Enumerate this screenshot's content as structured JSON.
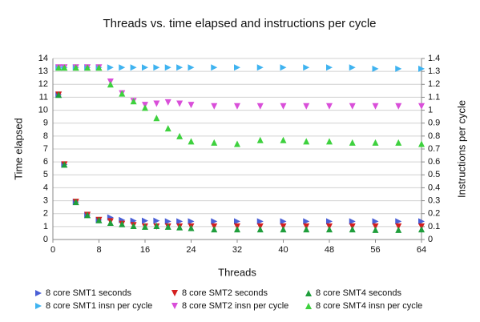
{
  "chart_data": {
    "type": "scatter",
    "title": "Threads vs. time elapsed and instructions per cycle",
    "x_label": "Threads",
    "y_label": "Time elapsed",
    "y2_label": "Instructions per cycle",
    "x": [
      1,
      2,
      4,
      6,
      8,
      10,
      12,
      14,
      16,
      18,
      20,
      22,
      24,
      28,
      32,
      36,
      40,
      44,
      48,
      52,
      56,
      60,
      64
    ],
    "xlim": [
      0,
      64
    ],
    "xticks": [
      0,
      8,
      16,
      24,
      32,
      40,
      48,
      56,
      64
    ],
    "ylim": [
      0,
      14
    ],
    "yticks": [
      0,
      1,
      2,
      3,
      4,
      5,
      6,
      7,
      8,
      9,
      10,
      11,
      12,
      13,
      14
    ],
    "y2lim": [
      0,
      1.4
    ],
    "y2ticks": [
      0,
      0.1,
      0.2,
      0.3,
      0.4,
      0.5,
      0.6,
      0.7,
      0.8,
      0.9,
      1,
      1.1,
      1.2,
      1.3,
      1.4
    ],
    "grid": true,
    "legend": "bottom",
    "series": [
      {
        "name": "8 core SMT1 seconds",
        "color": "#4a5fd6",
        "marker": "right",
        "values": [
          11.2,
          5.8,
          2.9,
          1.9,
          1.5,
          1.7,
          1.5,
          1.45,
          1.45,
          1.45,
          1.4,
          1.4,
          1.4,
          1.4,
          1.4,
          1.4,
          1.4,
          1.4,
          1.4,
          1.4,
          1.4,
          1.4,
          1.4
        ]
      },
      {
        "name": "8 core SMT2 seconds",
        "color": "#d42020",
        "marker": "down",
        "values": [
          11.2,
          5.8,
          2.9,
          1.9,
          1.5,
          1.4,
          1.2,
          1.1,
          1.0,
          1.0,
          1.0,
          1.0,
          1.0,
          1.0,
          1.0,
          1.0,
          1.0,
          1.0,
          1.0,
          1.0,
          1.0,
          1.0,
          1.0
        ]
      },
      {
        "name": "8 core SMT4 seconds",
        "color": "#1f9e3b",
        "marker": "up",
        "values": [
          11.2,
          5.8,
          2.9,
          1.9,
          1.5,
          1.3,
          1.2,
          1.05,
          1.0,
          1.05,
          1.0,
          0.95,
          0.9,
          0.8,
          0.8,
          0.8,
          0.8,
          0.8,
          0.8,
          0.8,
          0.75,
          0.75,
          0.8
        ]
      },
      {
        "name": "8 core SMT1 insn per cycle",
        "color": "#3fb3f0",
        "marker": "right",
        "axis": "y2",
        "values": [
          1.33,
          1.33,
          1.33,
          1.33,
          1.33,
          1.33,
          1.33,
          1.33,
          1.33,
          1.33,
          1.33,
          1.33,
          1.33,
          1.33,
          1.33,
          1.33,
          1.33,
          1.33,
          1.33,
          1.33,
          1.32,
          1.32,
          1.32
        ]
      },
      {
        "name": "8 core SMT2 insn per cycle",
        "color": "#d94fd9",
        "marker": "down",
        "axis": "y2",
        "values": [
          1.33,
          1.33,
          1.33,
          1.33,
          1.33,
          1.22,
          1.13,
          1.07,
          1.04,
          1.05,
          1.06,
          1.05,
          1.04,
          1.03,
          1.03,
          1.03,
          1.03,
          1.03,
          1.03,
          1.03,
          1.03,
          1.03,
          1.03
        ]
      },
      {
        "name": "8 core SMT4 insn per cycle",
        "color": "#3ed13e",
        "marker": "up",
        "axis": "y2",
        "values": [
          1.33,
          1.33,
          1.33,
          1.33,
          1.33,
          1.2,
          1.13,
          1.07,
          1.02,
          0.94,
          0.86,
          0.8,
          0.76,
          0.75,
          0.74,
          0.77,
          0.77,
          0.76,
          0.76,
          0.75,
          0.75,
          0.75,
          0.74
        ]
      }
    ]
  }
}
